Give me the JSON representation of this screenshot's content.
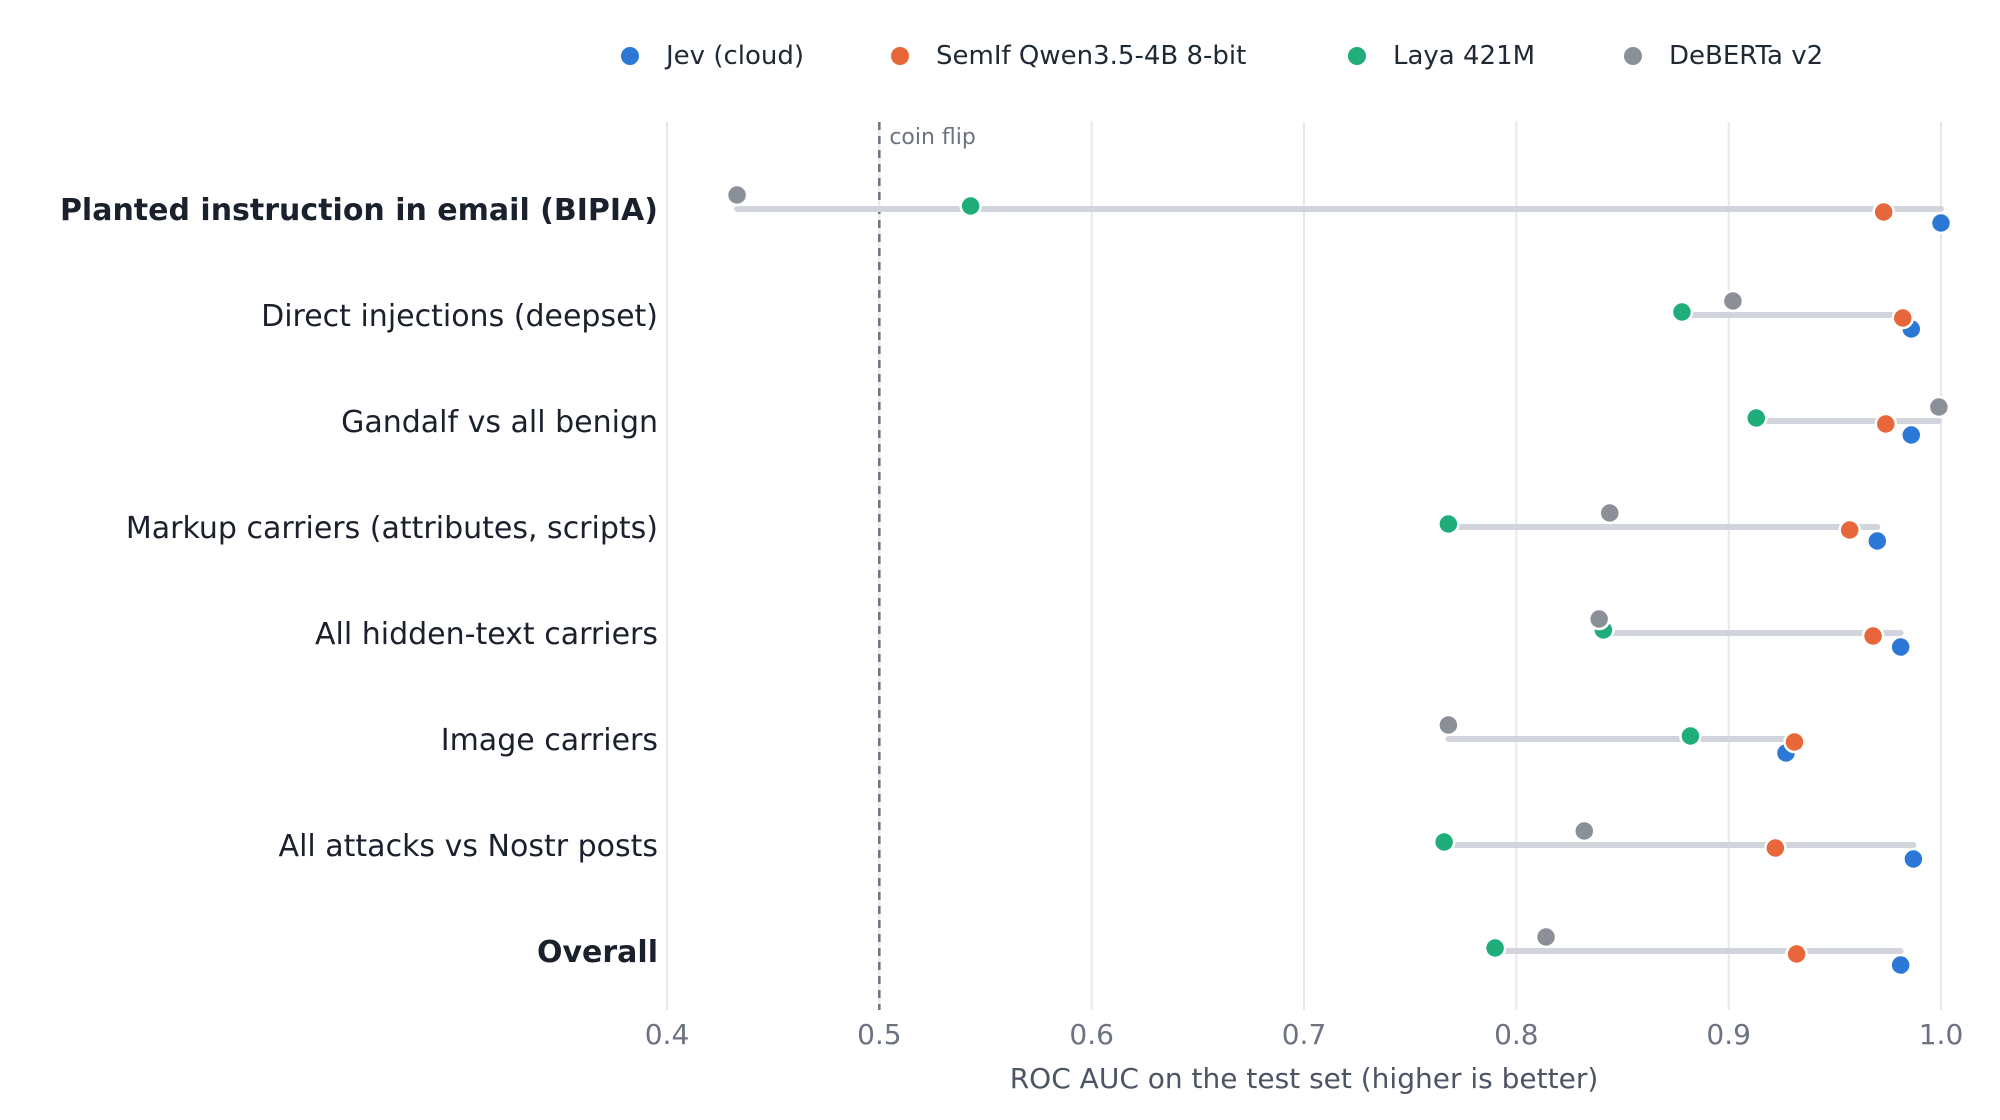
{
  "chart_data": {
    "type": "scatter",
    "subtype": "dumbbell",
    "title": "",
    "xlabel": "ROC AUC on the test set (higher is better)",
    "ylabel": "",
    "xlim": [
      0.4,
      1.0
    ],
    "xticks": [
      "0.4",
      "0.5",
      "0.6",
      "0.7",
      "0.8",
      "0.9",
      "1.0"
    ],
    "xtick_values": [
      0.4,
      0.5,
      0.6,
      0.7,
      0.8,
      0.9,
      1.0
    ],
    "grid": "vertical",
    "legend_position": "top",
    "reference_line": {
      "x": 0.5,
      "label": "coin flip",
      "style": "dashed"
    },
    "categories": [
      "Planted instruction in email (BIPIA)",
      "Direct injections (deepset)",
      "Gandalf vs all benign",
      "Markup carriers (attributes, scripts)",
      "All hidden-text carriers",
      "Image carriers",
      "All attacks vs Nostr posts",
      "Overall"
    ],
    "bold_categories": [
      0,
      7
    ],
    "series": [
      {
        "name": "Jev (cloud)",
        "color": "#2b78d6",
        "values": [
          1.0,
          0.986,
          0.986,
          0.97,
          0.981,
          0.927,
          0.987,
          0.981
        ]
      },
      {
        "name": "SemIf Qwen3.5-4B 8-bit",
        "color": "#e8673a",
        "values": [
          0.973,
          0.982,
          0.974,
          0.957,
          0.968,
          0.931,
          0.922,
          0.932
        ]
      },
      {
        "name": "Laya 421M",
        "color": "#1fae7a",
        "values": [
          0.543,
          0.878,
          0.913,
          0.768,
          0.841,
          0.882,
          0.766,
          0.79
        ]
      },
      {
        "name": "DeBERTa v2",
        "color": "#8b8f97",
        "values": [
          0.433,
          0.902,
          0.999,
          0.844,
          0.839,
          0.768,
          0.832,
          0.814
        ]
      }
    ]
  }
}
